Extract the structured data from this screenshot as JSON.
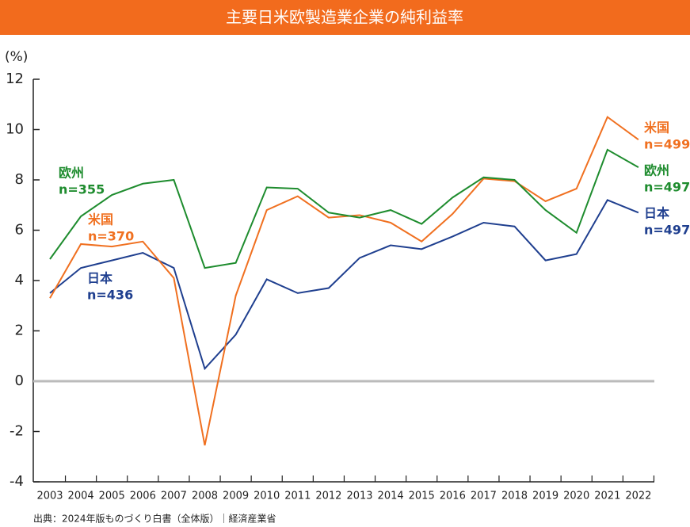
{
  "chart_data": {
    "type": "line",
    "title": "主要日米欧製造業企業の純利益率",
    "y_label": "(%)",
    "source": "出典：2024年版ものづくり白書（全体版）｜経済産業省",
    "categories": [
      "2003",
      "2004",
      "2005",
      "2006",
      "2007",
      "2008",
      "2009",
      "2010",
      "2011",
      "2012",
      "2013",
      "2014",
      "2015",
      "2016",
      "2017",
      "2018",
      "2019",
      "2020",
      "2021",
      "2022"
    ],
    "series": [
      {
        "name": "日本",
        "color": "#1f3f8f",
        "values": [
          3.5,
          4.5,
          4.8,
          5.1,
          4.5,
          0.5,
          1.85,
          4.05,
          3.5,
          3.7,
          4.9,
          5.4,
          5.25,
          5.75,
          6.3,
          6.15,
          4.8,
          5.05,
          7.2,
          6.7
        ]
      },
      {
        "name": "米国",
        "color": "#f07020",
        "values": [
          3.3,
          5.45,
          5.35,
          5.55,
          4.1,
          -2.55,
          3.4,
          6.8,
          7.35,
          6.5,
          6.6,
          6.3,
          5.55,
          6.65,
          8.05,
          7.95,
          7.15,
          7.65,
          10.5,
          9.6
        ]
      },
      {
        "name": "欧州",
        "color": "#1e8c2e",
        "values": [
          4.85,
          6.55,
          7.4,
          7.85,
          8.0,
          4.5,
          4.7,
          7.7,
          7.65,
          6.7,
          6.5,
          6.8,
          6.25,
          7.3,
          8.1,
          8.0,
          6.8,
          5.9,
          9.2,
          8.5
        ]
      }
    ],
    "annotations": [
      {
        "series": 2,
        "lines": [
          "欧州",
          "n=355"
        ]
      },
      {
        "series": 1,
        "lines": [
          "米国",
          "n=370"
        ]
      },
      {
        "series": 0,
        "lines": [
          "日本",
          "n=436"
        ]
      },
      {
        "series": 1,
        "lines": [
          "米国",
          "n=499"
        ]
      },
      {
        "series": 2,
        "lines": [
          "欧州",
          "n=497"
        ]
      },
      {
        "series": 0,
        "lines": [
          "日本",
          "n=497"
        ]
      }
    ],
    "ylim": [
      -4,
      12
    ],
    "yticks": [
      -4,
      -2,
      0,
      2,
      4,
      6,
      8,
      10,
      12
    ],
    "zero_line": true,
    "banner_color": "#f26b1d"
  }
}
